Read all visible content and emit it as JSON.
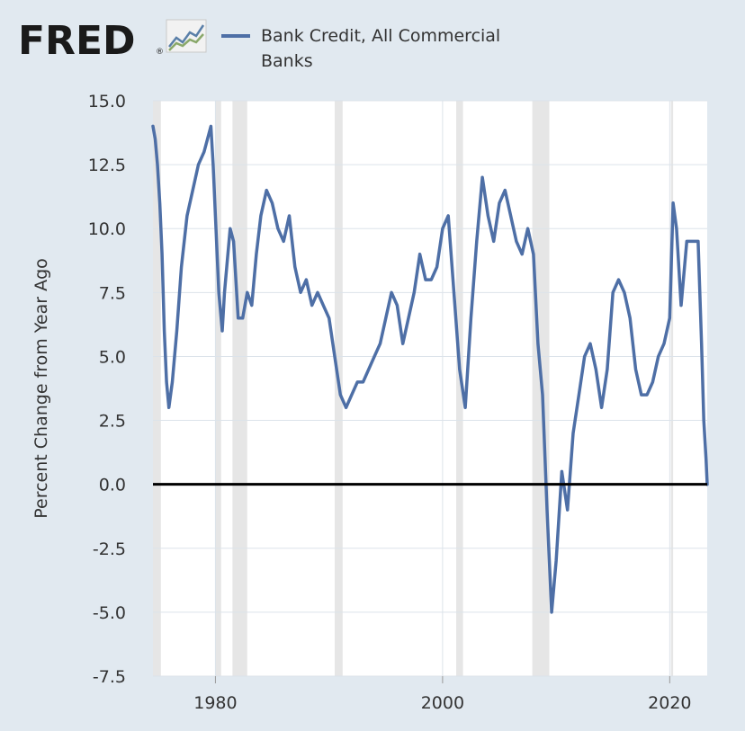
{
  "brand": {
    "logo_text": "FRED",
    "registered_mark": "®",
    "colors": {
      "logo_text": "#1a1a1a",
      "logo_red_dot": "#c8102e",
      "icon_line_1": "#5a7fa8",
      "icon_line_2": "#8aa86a"
    }
  },
  "legend": {
    "line_1": "Bank Credit, All Commercial",
    "line_2": "Banks",
    "color": "#4e6fa6"
  },
  "colors": {
    "page_bg": "#e1e9f0",
    "plot_bg": "#ffffff",
    "grid": "#dce3ea",
    "recession": "#e6e6e6",
    "series": "#4e6fa6",
    "zero_line": "#000000",
    "tick_text": "#333333"
  },
  "chart_data": {
    "type": "line",
    "title": "",
    "xlabel": "",
    "ylabel": "Percent Change from Year Ago",
    "xlim": [
      1974.5,
      2023.3
    ],
    "ylim": [
      -7.5,
      15.0
    ],
    "yticks": [
      15.0,
      12.5,
      10.0,
      7.5,
      5.0,
      2.5,
      0.0,
      -2.5,
      -5.0,
      -7.5
    ],
    "ytick_labels": [
      "15.0",
      "12.5",
      "10.0",
      "7.5",
      "5.0",
      "2.5",
      "0.0",
      "-2.5",
      "-5.0",
      "-7.5"
    ],
    "xticks": [
      1980,
      2000,
      2020
    ],
    "xtick_labels": [
      "1980",
      "2000",
      "2020"
    ],
    "grid": true,
    "zero_line": true,
    "recessions": [
      [
        1973.9,
        1975.2
      ],
      [
        1980.0,
        1980.5
      ],
      [
        1981.5,
        1982.8
      ],
      [
        1990.5,
        1991.2
      ],
      [
        2001.2,
        2001.8
      ],
      [
        2007.9,
        2009.4
      ],
      [
        2020.1,
        2020.3
      ]
    ],
    "series": [
      {
        "name": "Bank Credit, All Commercial Banks",
        "x": [
          1974.5,
          1974.7,
          1974.9,
          1975.1,
          1975.3,
          1975.5,
          1975.7,
          1975.9,
          1976.2,
          1976.6,
          1977.0,
          1977.5,
          1978.0,
          1978.5,
          1979.0,
          1979.3,
          1979.6,
          1979.8,
          1980.0,
          1980.3,
          1980.6,
          1980.8,
          1981.0,
          1981.3,
          1981.6,
          1982.0,
          1982.4,
          1982.8,
          1983.2,
          1983.6,
          1984.0,
          1984.5,
          1985.0,
          1985.5,
          1986.0,
          1986.5,
          1987.0,
          1987.5,
          1988.0,
          1988.5,
          1989.0,
          1989.5,
          1990.0,
          1990.5,
          1991.0,
          1991.5,
          1992.0,
          1992.5,
          1993.0,
          1993.5,
          1994.0,
          1994.5,
          1995.0,
          1995.5,
          1996.0,
          1996.5,
          1997.0,
          1997.5,
          1998.0,
          1998.5,
          1999.0,
          1999.5,
          2000.0,
          2000.5,
          2001.0,
          2001.5,
          2002.0,
          2002.5,
          2003.0,
          2003.5,
          2004.0,
          2004.5,
          2005.0,
          2005.5,
          2006.0,
          2006.5,
          2007.0,
          2007.5,
          2008.0,
          2008.4,
          2008.8,
          2009.2,
          2009.6,
          2010.0,
          2010.5,
          2011.0,
          2011.5,
          2012.0,
          2012.5,
          2013.0,
          2013.5,
          2014.0,
          2014.5,
          2015.0,
          2015.5,
          2016.0,
          2016.5,
          2017.0,
          2017.5,
          2018.0,
          2018.5,
          2019.0,
          2019.5,
          2020.0,
          2020.3,
          2020.6,
          2021.0,
          2021.5,
          2022.0,
          2022.5,
          2022.8,
          2023.0,
          2023.2,
          2023.3
        ],
        "values": [
          14.0,
          13.5,
          12.5,
          11.0,
          9.0,
          6.0,
          4.0,
          3.0,
          4.0,
          6.0,
          8.5,
          10.5,
          11.5,
          12.5,
          13.0,
          13.5,
          14.0,
          12.5,
          10.5,
          7.5,
          6.0,
          7.5,
          8.5,
          10.0,
          9.5,
          6.5,
          6.5,
          7.5,
          7.0,
          9.0,
          10.5,
          11.5,
          11.0,
          10.0,
          9.5,
          10.5,
          8.5,
          7.5,
          8.0,
          7.0,
          7.5,
          7.0,
          6.5,
          5.0,
          3.5,
          3.0,
          3.5,
          4.0,
          4.0,
          4.5,
          5.0,
          5.5,
          6.5,
          7.5,
          7.0,
          5.5,
          6.5,
          7.5,
          9.0,
          8.0,
          8.0,
          8.5,
          10.0,
          10.5,
          7.5,
          4.5,
          3.0,
          6.5,
          9.5,
          12.0,
          10.5,
          9.5,
          11.0,
          11.5,
          10.5,
          9.5,
          9.0,
          10.0,
          9.0,
          5.5,
          3.5,
          -1.0,
          -5.0,
          -3.0,
          0.5,
          -1.0,
          2.0,
          3.5,
          5.0,
          5.5,
          4.5,
          3.0,
          4.5,
          7.5,
          8.0,
          7.5,
          6.5,
          4.5,
          3.5,
          3.5,
          4.0,
          5.0,
          5.5,
          6.5,
          11.0,
          10.0,
          7.0,
          9.5,
          9.5,
          9.5,
          5.5,
          2.5,
          1.0,
          0.0
        ]
      }
    ]
  }
}
